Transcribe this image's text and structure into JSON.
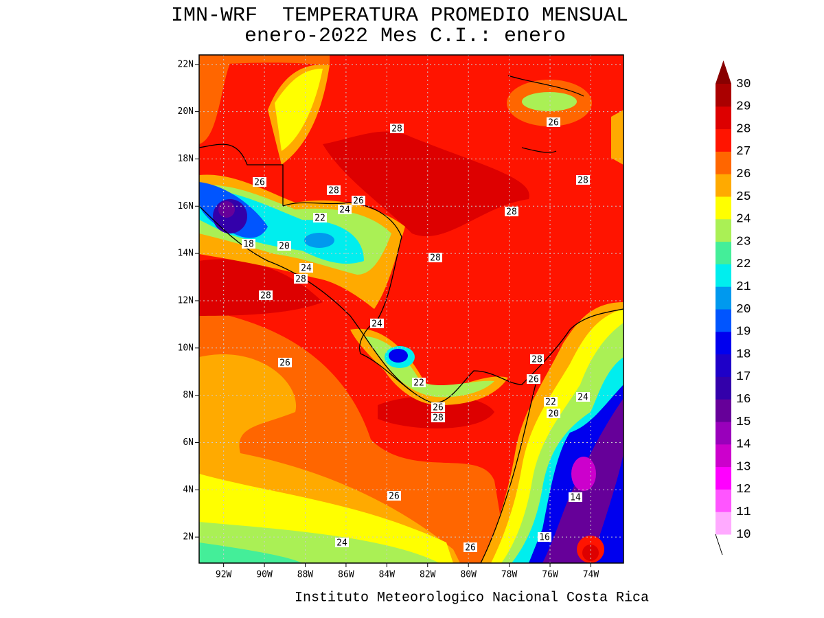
{
  "title": "IMN-WRF  TEMPERATURA PROMEDIO MENSUAL",
  "subtitle": "enero-2022 Mes C.I.: enero",
  "footer": "Instituto Meteorologico Nacional Costa Rica",
  "map": {
    "xlim": [
      -93.2,
      -72.4
    ],
    "ylim": [
      0.9,
      22.4
    ],
    "xticks": [
      {
        "value": -92,
        "label": "92W"
      },
      {
        "value": -90,
        "label": "90W"
      },
      {
        "value": -88,
        "label": "88W"
      },
      {
        "value": -86,
        "label": "86W"
      },
      {
        "value": -84,
        "label": "84W"
      },
      {
        "value": -82,
        "label": "82W"
      },
      {
        "value": -80,
        "label": "80W"
      },
      {
        "value": -78,
        "label": "78W"
      },
      {
        "value": -76,
        "label": "76W"
      },
      {
        "value": -74,
        "label": "74W"
      }
    ],
    "yticks": [
      {
        "value": 2,
        "label": "2N"
      },
      {
        "value": 4,
        "label": "4N"
      },
      {
        "value": 6,
        "label": "6N"
      },
      {
        "value": 8,
        "label": "8N"
      },
      {
        "value": 10,
        "label": "10N"
      },
      {
        "value": 12,
        "label": "12N"
      },
      {
        "value": 14,
        "label": "14N"
      },
      {
        "value": 16,
        "label": "16N"
      },
      {
        "value": 18,
        "label": "18N"
      },
      {
        "value": 20,
        "label": "20N"
      },
      {
        "value": 22,
        "label": "22N"
      }
    ],
    "grid": true
  },
  "colorbar": {
    "levels": [
      10,
      11,
      12,
      13,
      14,
      15,
      16,
      17,
      18,
      19,
      20,
      21,
      22,
      23,
      24,
      25,
      26,
      27,
      28,
      29,
      30
    ],
    "colors": [
      "#ffaaff",
      "#ff55ff",
      "#ff00ff",
      "#cc00cc",
      "#9900bb",
      "#660099",
      "#3300aa",
      "#1e00c8",
      "#0000ee",
      "#0055ff",
      "#0099ee",
      "#00eeee",
      "#44ee99",
      "#aaf055",
      "#ffff00",
      "#ffaa00",
      "#ff6600",
      "#ff1400",
      "#dd0000",
      "#aa0000"
    ],
    "over_color": "#880000"
  },
  "contour_labels": [
    28,
    26,
    26,
    28,
    26,
    24,
    22,
    28,
    28,
    18,
    20,
    24,
    28,
    28,
    28,
    24,
    28,
    26,
    26,
    22,
    22,
    24,
    20,
    26,
    28,
    26,
    14,
    24,
    16,
    26
  ]
}
